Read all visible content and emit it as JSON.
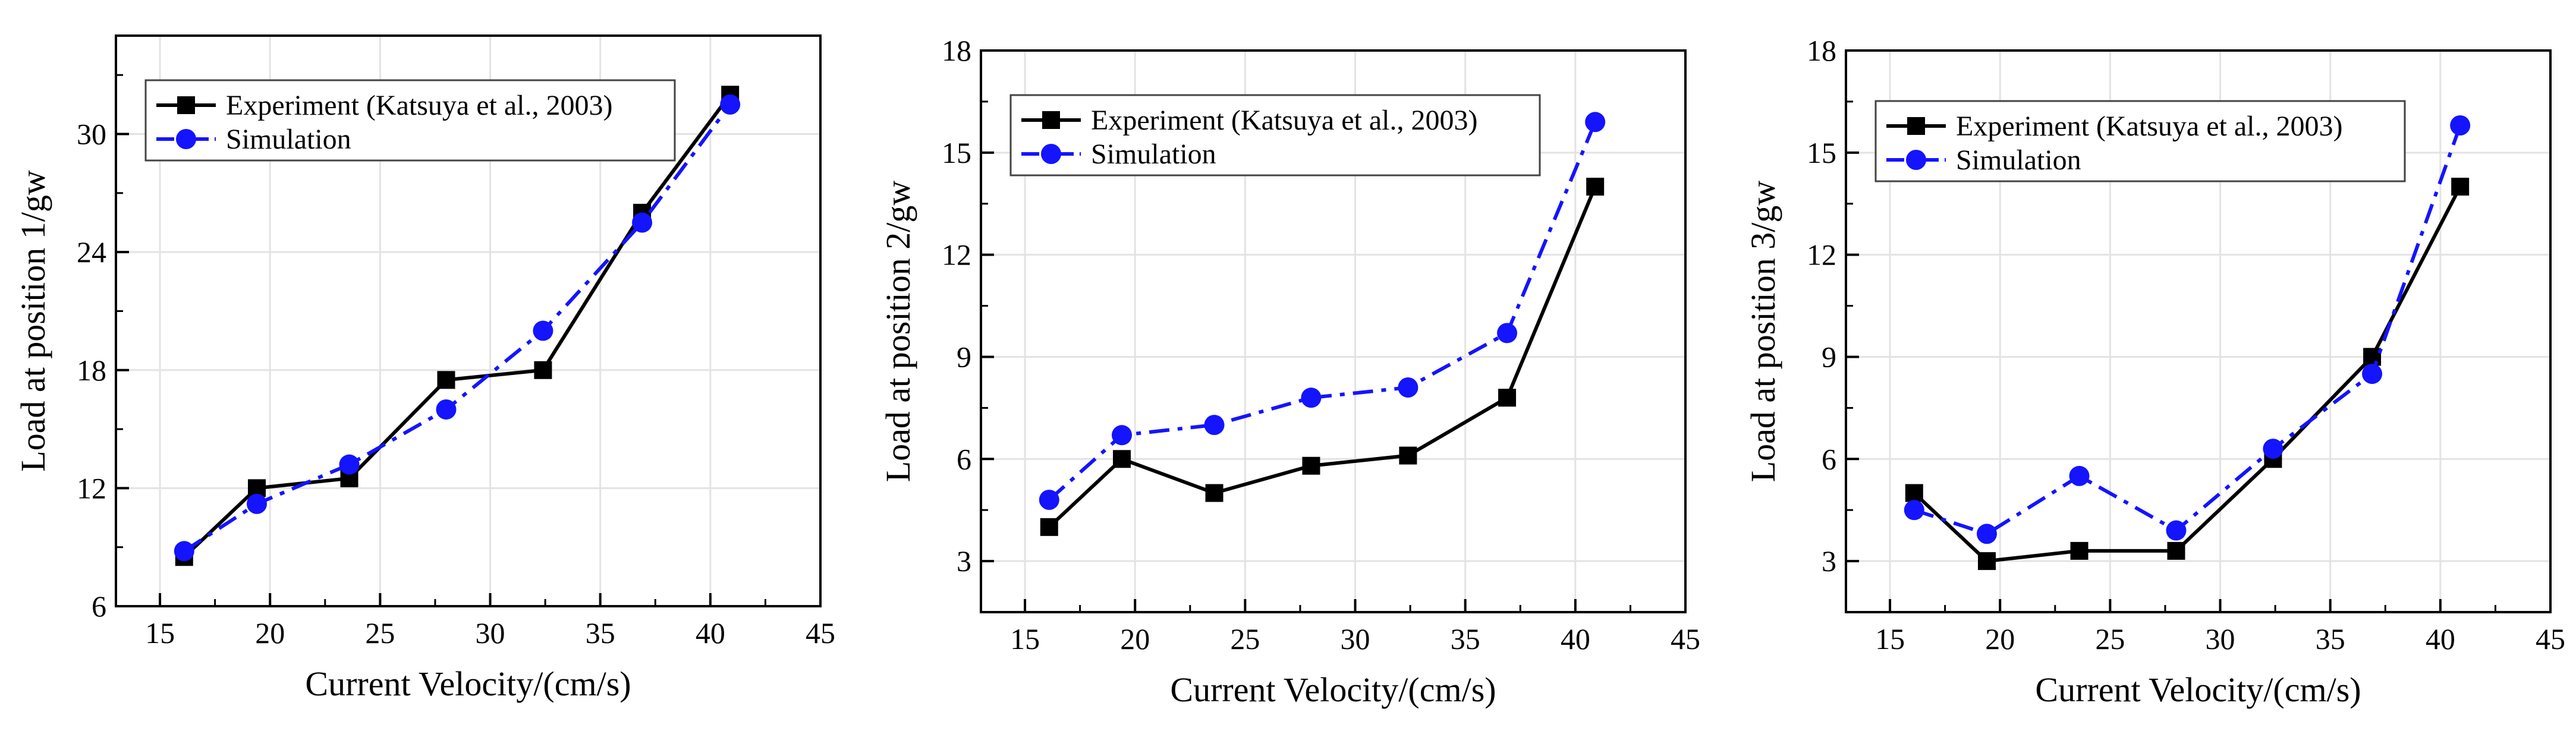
{
  "chart_data": [
    {
      "type": "line",
      "xlabel": "Current Velocity/(cm/s)",
      "ylabel": "Load at position 1/gw",
      "xlim": [
        13,
        45
      ],
      "ylim": [
        6,
        35
      ],
      "xticks": [
        "15",
        "20",
        "25",
        "30",
        "35",
        "40",
        "45"
      ],
      "yticks": [
        "6",
        "12",
        "18",
        "24",
        "30"
      ],
      "grid": true,
      "legend": "top-left",
      "series": [
        {
          "name": "Experiment (Katsuya et al., 2003)",
          "color": "#000000",
          "style": "solid",
          "marker": "square",
          "x": [
            16.1,
            19.4,
            23.6,
            28.0,
            32.4,
            36.9,
            40.9
          ],
          "values": [
            8.5,
            12.0,
            12.5,
            17.5,
            18.0,
            26.0,
            32.0
          ]
        },
        {
          "name": "Simulation",
          "color": "#1414ff",
          "style": "dash-dot",
          "marker": "circle",
          "x": [
            16.1,
            19.4,
            23.6,
            28.0,
            32.4,
            36.9,
            40.9
          ],
          "values": [
            8.8,
            11.2,
            13.2,
            16.0,
            20.0,
            25.5,
            31.5
          ]
        }
      ]
    },
    {
      "type": "line",
      "xlabel": "Current Velocity/(cm/s)",
      "ylabel": "Load at position 2/gw",
      "xlim": [
        13,
        45
      ],
      "ylim": [
        1.5,
        18
      ],
      "xticks": [
        "15",
        "20",
        "25",
        "30",
        "35",
        "40",
        "45"
      ],
      "yticks": [
        "3",
        "6",
        "9",
        "12",
        "15",
        "18"
      ],
      "grid": true,
      "legend": "top-left",
      "series": [
        {
          "name": "Experiment (Katsuya et al., 2003)",
          "color": "#000000",
          "style": "solid",
          "marker": "square",
          "x": [
            16.1,
            19.4,
            23.6,
            28.0,
            32.4,
            36.9,
            40.9
          ],
          "values": [
            4.0,
            6.0,
            5.0,
            5.8,
            6.1,
            7.8,
            14.0
          ]
        },
        {
          "name": "Simulation",
          "color": "#1414ff",
          "style": "dash-dot",
          "marker": "circle",
          "x": [
            16.1,
            19.4,
            23.6,
            28.0,
            32.4,
            36.9,
            40.9
          ],
          "values": [
            4.8,
            6.7,
            7.0,
            7.8,
            8.1,
            9.7,
            15.9
          ]
        }
      ]
    },
    {
      "type": "line",
      "xlabel": "Current Velocity/(cm/s)",
      "ylabel": "Load at position 3/gw",
      "xlim": [
        13,
        45
      ],
      "ylim": [
        1.5,
        18
      ],
      "xticks": [
        "15",
        "20",
        "25",
        "30",
        "35",
        "40",
        "45"
      ],
      "yticks": [
        "3",
        "6",
        "9",
        "12",
        "15",
        "18"
      ],
      "grid": true,
      "legend": "top-left",
      "series": [
        {
          "name": "Experiment (Katsuya et al., 2003)",
          "color": "#000000",
          "style": "solid",
          "marker": "square",
          "x": [
            16.1,
            19.4,
            23.6,
            28.0,
            32.4,
            36.9,
            40.9
          ],
          "values": [
            5.0,
            3.0,
            3.3,
            3.3,
            6.0,
            9.0,
            14.0
          ]
        },
        {
          "name": "Simulation",
          "color": "#1414ff",
          "style": "dash-dot",
          "marker": "circle",
          "x": [
            16.1,
            19.4,
            23.6,
            28.0,
            32.4,
            36.9,
            40.9
          ],
          "values": [
            4.5,
            3.8,
            5.5,
            3.9,
            6.3,
            8.5,
            15.8
          ]
        }
      ]
    }
  ]
}
